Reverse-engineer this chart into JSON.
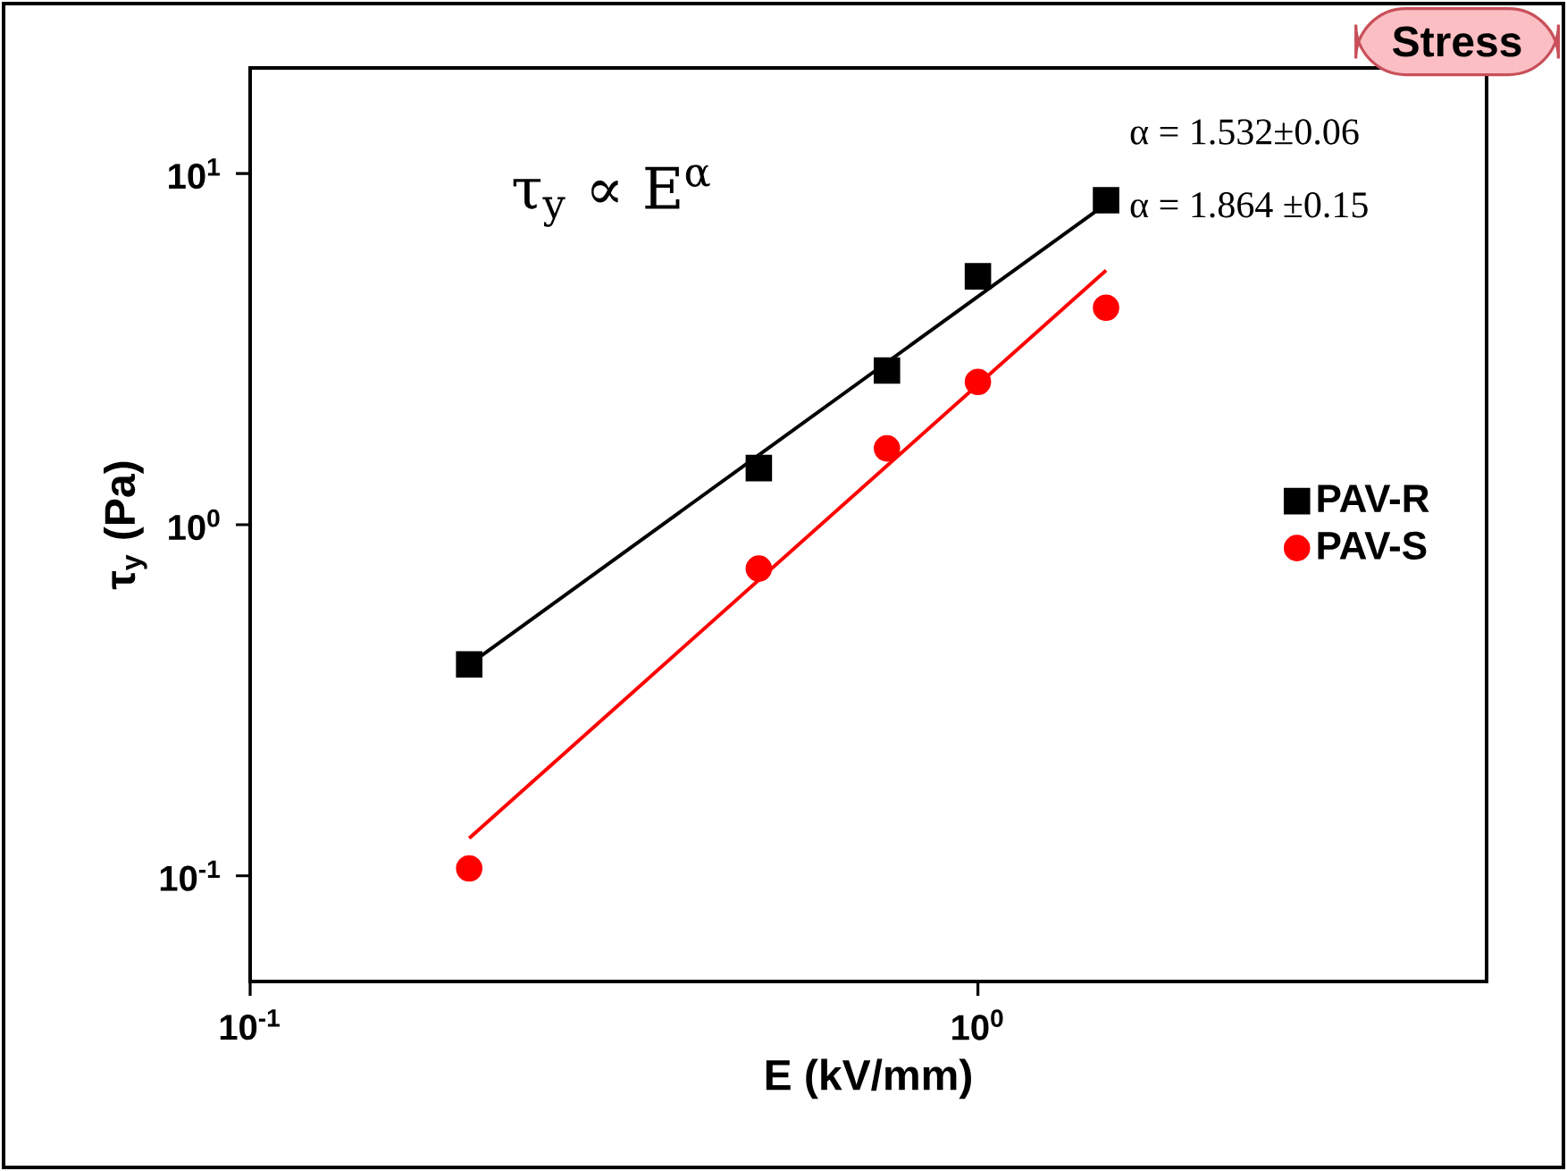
{
  "chart_data": {
    "type": "scatter",
    "xlabel": "E (kV/mm)",
    "ylabel": "τ$_{y}$ (Pa)",
    "log": "xy",
    "xlim": [
      0.1,
      5
    ],
    "ylim": [
      0.05,
      20
    ],
    "xticks": [
      {
        "value": 0.1,
        "label": "10$^{-1}$"
      },
      {
        "value": 1,
        "label": "10$^{0}$"
      }
    ],
    "yticks": [
      {
        "value": 0.1,
        "label": "10$^{-1}$"
      },
      {
        "value": 1,
        "label": "10$^{0}$"
      },
      {
        "value": 10,
        "label": "10$^{1}$"
      }
    ],
    "legend": "right",
    "series": [
      {
        "name": "PAV-R",
        "color": "#000000",
        "marker": "square",
        "x": [
          0.2,
          0.5,
          0.75,
          1.0,
          1.5
        ],
        "values": [
          0.4,
          1.45,
          2.75,
          5.1,
          8.4
        ]
      },
      {
        "name": "PAV-S",
        "color": "#ff0000",
        "marker": "circle",
        "x": [
          0.2,
          0.5,
          0.75,
          1.0,
          1.5
        ],
        "values": [
          0.105,
          0.75,
          1.65,
          2.55,
          4.15
        ]
      },
      {
        "type": "line",
        "color": "#000000",
        "x": [
          0.2,
          1.5
        ],
        "values": [
          0.4,
          8.2
        ]
      },
      {
        "type": "line",
        "color": "#ff0000",
        "x": [
          0.2,
          1.5
        ],
        "values": [
          0.128,
          5.3
        ]
      }
    ],
    "annotations": [
      "τ$_{y}$ ∝ E$^{α}$",
      "α = 1.532±0.06",
      "α = 1.864 ±0.15",
      "Stress"
    ]
  }
}
